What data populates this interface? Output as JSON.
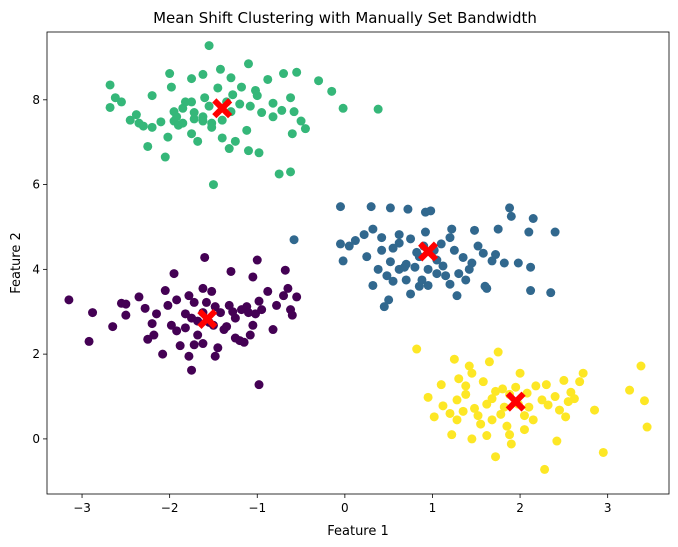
{
  "chart_data": {
    "type": "scatter",
    "title": "Mean Shift Clustering with Manually Set Bandwidth",
    "xlabel": "Feature 1",
    "ylabel": "Feature 2",
    "xlim": [
      -3.4,
      3.7
    ],
    "ylim": [
      -1.3,
      9.6
    ],
    "xticks": [
      -3,
      -2,
      -1,
      0,
      1,
      2,
      3
    ],
    "yticks": [
      0,
      2,
      4,
      6,
      8
    ],
    "grid": false,
    "legend": false,
    "series": [
      {
        "color": "#35b779",
        "points": [
          [
            -1.55,
            9.28
          ],
          [
            -2.68,
            8.35
          ],
          [
            -2.62,
            8.05
          ],
          [
            -2.55,
            7.95
          ],
          [
            -2.68,
            7.82
          ],
          [
            -2.45,
            7.52
          ],
          [
            -2.35,
            7.45
          ],
          [
            -2.2,
            7.35
          ],
          [
            -2.1,
            7.48
          ],
          [
            -1.95,
            7.5
          ],
          [
            -2.2,
            8.1
          ],
          [
            -2.0,
            8.62
          ],
          [
            -1.98,
            8.3
          ],
          [
            -1.75,
            8.5
          ],
          [
            -1.62,
            8.6
          ],
          [
            -1.42,
            8.72
          ],
          [
            -1.3,
            8.52
          ],
          [
            -1.18,
            8.3
          ],
          [
            -1.1,
            8.85
          ],
          [
            -1.0,
            8.1
          ],
          [
            -0.88,
            8.48
          ],
          [
            -0.7,
            8.62
          ],
          [
            -0.55,
            8.65
          ],
          [
            -0.3,
            8.45
          ],
          [
            -0.15,
            8.2
          ],
          [
            -1.45,
            8.28
          ],
          [
            -1.6,
            8.05
          ],
          [
            -1.75,
            7.95
          ],
          [
            -1.85,
            7.8
          ],
          [
            -1.92,
            7.6
          ],
          [
            -1.72,
            7.55
          ],
          [
            -1.62,
            7.6
          ],
          [
            -1.52,
            7.45
          ],
          [
            -1.4,
            7.52
          ],
          [
            -1.3,
            7.72
          ],
          [
            -1.2,
            7.9
          ],
          [
            -1.08,
            7.85
          ],
          [
            -0.95,
            7.7
          ],
          [
            -0.82,
            7.6
          ],
          [
            -0.72,
            7.75
          ],
          [
            -0.58,
            7.72
          ],
          [
            -0.5,
            7.5
          ],
          [
            -0.45,
            7.32
          ],
          [
            -0.6,
            7.2
          ],
          [
            -1.12,
            7.28
          ],
          [
            -1.25,
            7.02
          ],
          [
            -1.1,
            6.8
          ],
          [
            -1.32,
            6.85
          ],
          [
            -0.98,
            6.75
          ],
          [
            -1.52,
            7.35
          ],
          [
            -1.62,
            7.5
          ],
          [
            -1.75,
            7.2
          ],
          [
            -1.9,
            7.4
          ],
          [
            -2.02,
            7.12
          ],
          [
            -2.25,
            6.9
          ],
          [
            -2.05,
            6.65
          ],
          [
            -0.02,
            7.8
          ],
          [
            0.38,
            7.78
          ],
          [
            -0.75,
            6.25
          ],
          [
            -0.62,
            6.3
          ],
          [
            -1.5,
            6.0
          ],
          [
            -1.95,
            7.72
          ],
          [
            -1.82,
            7.95
          ],
          [
            -1.55,
            7.85
          ],
          [
            -1.35,
            7.95
          ],
          [
            -1.28,
            8.12
          ],
          [
            -0.82,
            7.92
          ],
          [
            -0.62,
            8.05
          ],
          [
            -1.02,
            8.22
          ],
          [
            -1.4,
            7.1
          ],
          [
            -1.68,
            7.02
          ],
          [
            -1.85,
            7.45
          ],
          [
            -1.72,
            7.7
          ],
          [
            -2.3,
            7.38
          ],
          [
            -2.38,
            7.65
          ]
        ]
      },
      {
        "color": "#31688e",
        "points": [
          [
            -0.05,
            5.48
          ],
          [
            0.3,
            5.48
          ],
          [
            0.52,
            5.45
          ],
          [
            0.72,
            5.42
          ],
          [
            0.92,
            5.35
          ],
          [
            0.98,
            5.38
          ],
          [
            1.88,
            5.45
          ],
          [
            1.9,
            5.25
          ],
          [
            2.15,
            5.2
          ],
          [
            2.1,
            4.88
          ],
          [
            2.4,
            4.88
          ],
          [
            1.75,
            4.95
          ],
          [
            1.48,
            4.92
          ],
          [
            1.22,
            4.95
          ],
          [
            1.2,
            4.75
          ],
          [
            0.92,
            4.88
          ],
          [
            0.75,
            4.72
          ],
          [
            0.62,
            4.82
          ],
          [
            0.42,
            4.75
          ],
          [
            0.32,
            4.95
          ],
          [
            0.22,
            4.82
          ],
          [
            0.12,
            4.68
          ],
          [
            0.05,
            4.55
          ],
          [
            -0.05,
            4.6
          ],
          [
            -0.02,
            4.2
          ],
          [
            0.25,
            4.3
          ],
          [
            0.42,
            4.45
          ],
          [
            0.52,
            4.18
          ],
          [
            0.62,
            4.0
          ],
          [
            0.7,
            4.12
          ],
          [
            0.8,
            4.05
          ],
          [
            0.85,
            4.3
          ],
          [
            0.9,
            4.55
          ],
          [
            1.02,
            4.45
          ],
          [
            1.1,
            4.6
          ],
          [
            1.25,
            4.45
          ],
          [
            1.35,
            4.28
          ],
          [
            1.45,
            4.15
          ],
          [
            1.52,
            4.55
          ],
          [
            1.58,
            4.38
          ],
          [
            1.68,
            4.2
          ],
          [
            1.82,
            4.15
          ],
          [
            1.98,
            4.15
          ],
          [
            2.12,
            4.05
          ],
          [
            0.32,
            3.62
          ],
          [
            0.48,
            3.85
          ],
          [
            0.55,
            3.72
          ],
          [
            0.7,
            3.75
          ],
          [
            0.75,
            3.42
          ],
          [
            0.85,
            3.6
          ],
          [
            0.95,
            3.62
          ],
          [
            1.05,
            3.9
          ],
          [
            1.15,
            3.85
          ],
          [
            1.2,
            3.65
          ],
          [
            1.28,
            3.38
          ],
          [
            1.38,
            3.75
          ],
          [
            1.6,
            3.6
          ],
          [
            1.62,
            3.55
          ],
          [
            2.12,
            3.5
          ],
          [
            2.35,
            3.45
          ],
          [
            0.45,
            3.12
          ],
          [
            0.5,
            3.28
          ],
          [
            0.62,
            4.62
          ],
          [
            -0.58,
            4.7
          ],
          [
            0.68,
            4.05
          ],
          [
            0.82,
            4.4
          ],
          [
            1.3,
            3.9
          ],
          [
            1.42,
            4.0
          ],
          [
            1.12,
            4.08
          ],
          [
            1.72,
            4.35
          ],
          [
            0.55,
            4.5
          ],
          [
            0.38,
            4.0
          ],
          [
            0.95,
            4.0
          ],
          [
            1.05,
            4.22
          ],
          [
            0.88,
            3.75
          ]
        ]
      },
      {
        "color": "#440154",
        "points": [
          [
            -3.15,
            3.28
          ],
          [
            -2.88,
            2.98
          ],
          [
            -2.65,
            2.65
          ],
          [
            -2.55,
            3.2
          ],
          [
            -2.5,
            3.18
          ],
          [
            -2.5,
            2.92
          ],
          [
            -2.35,
            3.35
          ],
          [
            -2.2,
            2.72
          ],
          [
            -2.18,
            2.45
          ],
          [
            -2.05,
            3.5
          ],
          [
            -1.95,
            3.9
          ],
          [
            -2.02,
            3.15
          ],
          [
            -1.98,
            2.68
          ],
          [
            -1.92,
            2.55
          ],
          [
            -1.82,
            2.95
          ],
          [
            -1.78,
            3.38
          ],
          [
            -1.72,
            3.22
          ],
          [
            -1.68,
            2.78
          ],
          [
            -1.62,
            3.55
          ],
          [
            -1.6,
            4.28
          ],
          [
            -1.58,
            3.22
          ],
          [
            -1.55,
            2.75
          ],
          [
            -1.5,
            2.68
          ],
          [
            -1.48,
            3.12
          ],
          [
            -1.42,
            2.98
          ],
          [
            -1.38,
            2.58
          ],
          [
            -1.32,
            3.15
          ],
          [
            -1.28,
            3.0
          ],
          [
            -1.25,
            2.85
          ],
          [
            -1.2,
            2.32
          ],
          [
            -1.18,
            3.05
          ],
          [
            -1.12,
            3.12
          ],
          [
            -1.1,
            2.98
          ],
          [
            -1.05,
            2.68
          ],
          [
            -1.02,
            2.95
          ],
          [
            -0.98,
            3.25
          ],
          [
            -0.95,
            3.05
          ],
          [
            -1.0,
            4.22
          ],
          [
            -1.3,
            3.95
          ],
          [
            -1.05,
            3.82
          ],
          [
            -0.68,
            3.98
          ],
          [
            -0.65,
            3.55
          ],
          [
            -0.7,
            3.38
          ],
          [
            -0.55,
            3.35
          ],
          [
            -0.62,
            3.05
          ],
          [
            -0.6,
            2.92
          ],
          [
            -0.98,
            1.28
          ],
          [
            -1.75,
            1.62
          ],
          [
            -1.48,
            1.95
          ],
          [
            -1.78,
            1.95
          ],
          [
            -1.88,
            2.2
          ],
          [
            -1.72,
            2.22
          ],
          [
            -1.62,
            2.25
          ],
          [
            -1.68,
            2.45
          ],
          [
            -2.08,
            2.0
          ],
          [
            -2.25,
            2.35
          ],
          [
            -1.25,
            2.38
          ],
          [
            -1.15,
            2.28
          ],
          [
            -0.82,
            2.58
          ],
          [
            -0.78,
            3.15
          ],
          [
            -2.92,
            2.3
          ],
          [
            -1.45,
            2.15
          ],
          [
            -1.82,
            2.62
          ],
          [
            -2.28,
            3.08
          ],
          [
            -1.52,
            3.48
          ],
          [
            -1.92,
            3.28
          ],
          [
            -2.15,
            2.95
          ],
          [
            -1.35,
            2.65
          ],
          [
            -1.62,
            2.98
          ],
          [
            -1.08,
            2.45
          ],
          [
            -0.88,
            3.48
          ],
          [
            -1.75,
            2.85
          ]
        ]
      },
      {
        "color": "#fde725",
        "points": [
          [
            0.82,
            2.12
          ],
          [
            1.25,
            1.88
          ],
          [
            1.42,
            1.72
          ],
          [
            1.65,
            1.82
          ],
          [
            1.75,
            2.05
          ],
          [
            1.45,
            1.55
          ],
          [
            1.3,
            1.42
          ],
          [
            1.38,
            1.25
          ],
          [
            1.28,
            0.92
          ],
          [
            1.1,
            1.28
          ],
          [
            0.95,
            0.98
          ],
          [
            1.12,
            0.78
          ],
          [
            1.2,
            0.6
          ],
          [
            1.28,
            0.45
          ],
          [
            1.35,
            0.65
          ],
          [
            1.52,
            0.55
          ],
          [
            1.48,
            0.72
          ],
          [
            1.62,
            0.82
          ],
          [
            1.68,
            0.95
          ],
          [
            1.72,
            1.12
          ],
          [
            1.8,
            1.18
          ],
          [
            1.88,
            1.05
          ],
          [
            1.95,
            1.22
          ],
          [
            2.0,
            1.55
          ],
          [
            2.05,
            0.55
          ],
          [
            2.1,
            0.75
          ],
          [
            2.18,
            1.25
          ],
          [
            2.25,
            0.92
          ],
          [
            2.32,
            0.8
          ],
          [
            2.4,
            1.0
          ],
          [
            2.45,
            0.68
          ],
          [
            2.52,
            0.52
          ],
          [
            2.58,
            1.1
          ],
          [
            2.62,
            0.95
          ],
          [
            2.68,
            1.35
          ],
          [
            2.72,
            1.55
          ],
          [
            2.85,
            0.68
          ],
          [
            2.95,
            -0.32
          ],
          [
            3.25,
            1.15
          ],
          [
            3.38,
            1.72
          ],
          [
            3.42,
            0.9
          ],
          [
            3.45,
            0.28
          ],
          [
            2.42,
            -0.05
          ],
          [
            2.28,
            -0.72
          ],
          [
            1.72,
            -0.42
          ],
          [
            1.45,
            0.0
          ],
          [
            1.62,
            0.08
          ],
          [
            1.22,
            0.1
          ],
          [
            1.88,
            0.1
          ],
          [
            1.9,
            -0.12
          ],
          [
            2.05,
            0.22
          ],
          [
            2.15,
            0.45
          ],
          [
            1.55,
            0.35
          ],
          [
            1.78,
            0.58
          ],
          [
            1.98,
            0.82
          ],
          [
            2.3,
            1.28
          ],
          [
            2.5,
            1.38
          ],
          [
            2.55,
            0.88
          ],
          [
            1.38,
            1.05
          ],
          [
            1.58,
            1.35
          ],
          [
            1.68,
            0.45
          ],
          [
            1.85,
            0.3
          ],
          [
            2.08,
            1.08
          ],
          [
            1.02,
            0.52
          ],
          [
            1.82,
            0.75
          ]
        ]
      }
    ],
    "cluster_centers": {
      "color": "#ff0000",
      "marker": "X",
      "points": [
        [
          -1.4,
          7.8
        ],
        [
          0.95,
          4.42
        ],
        [
          -1.57,
          2.83
        ],
        [
          1.95,
          0.88
        ]
      ]
    }
  }
}
